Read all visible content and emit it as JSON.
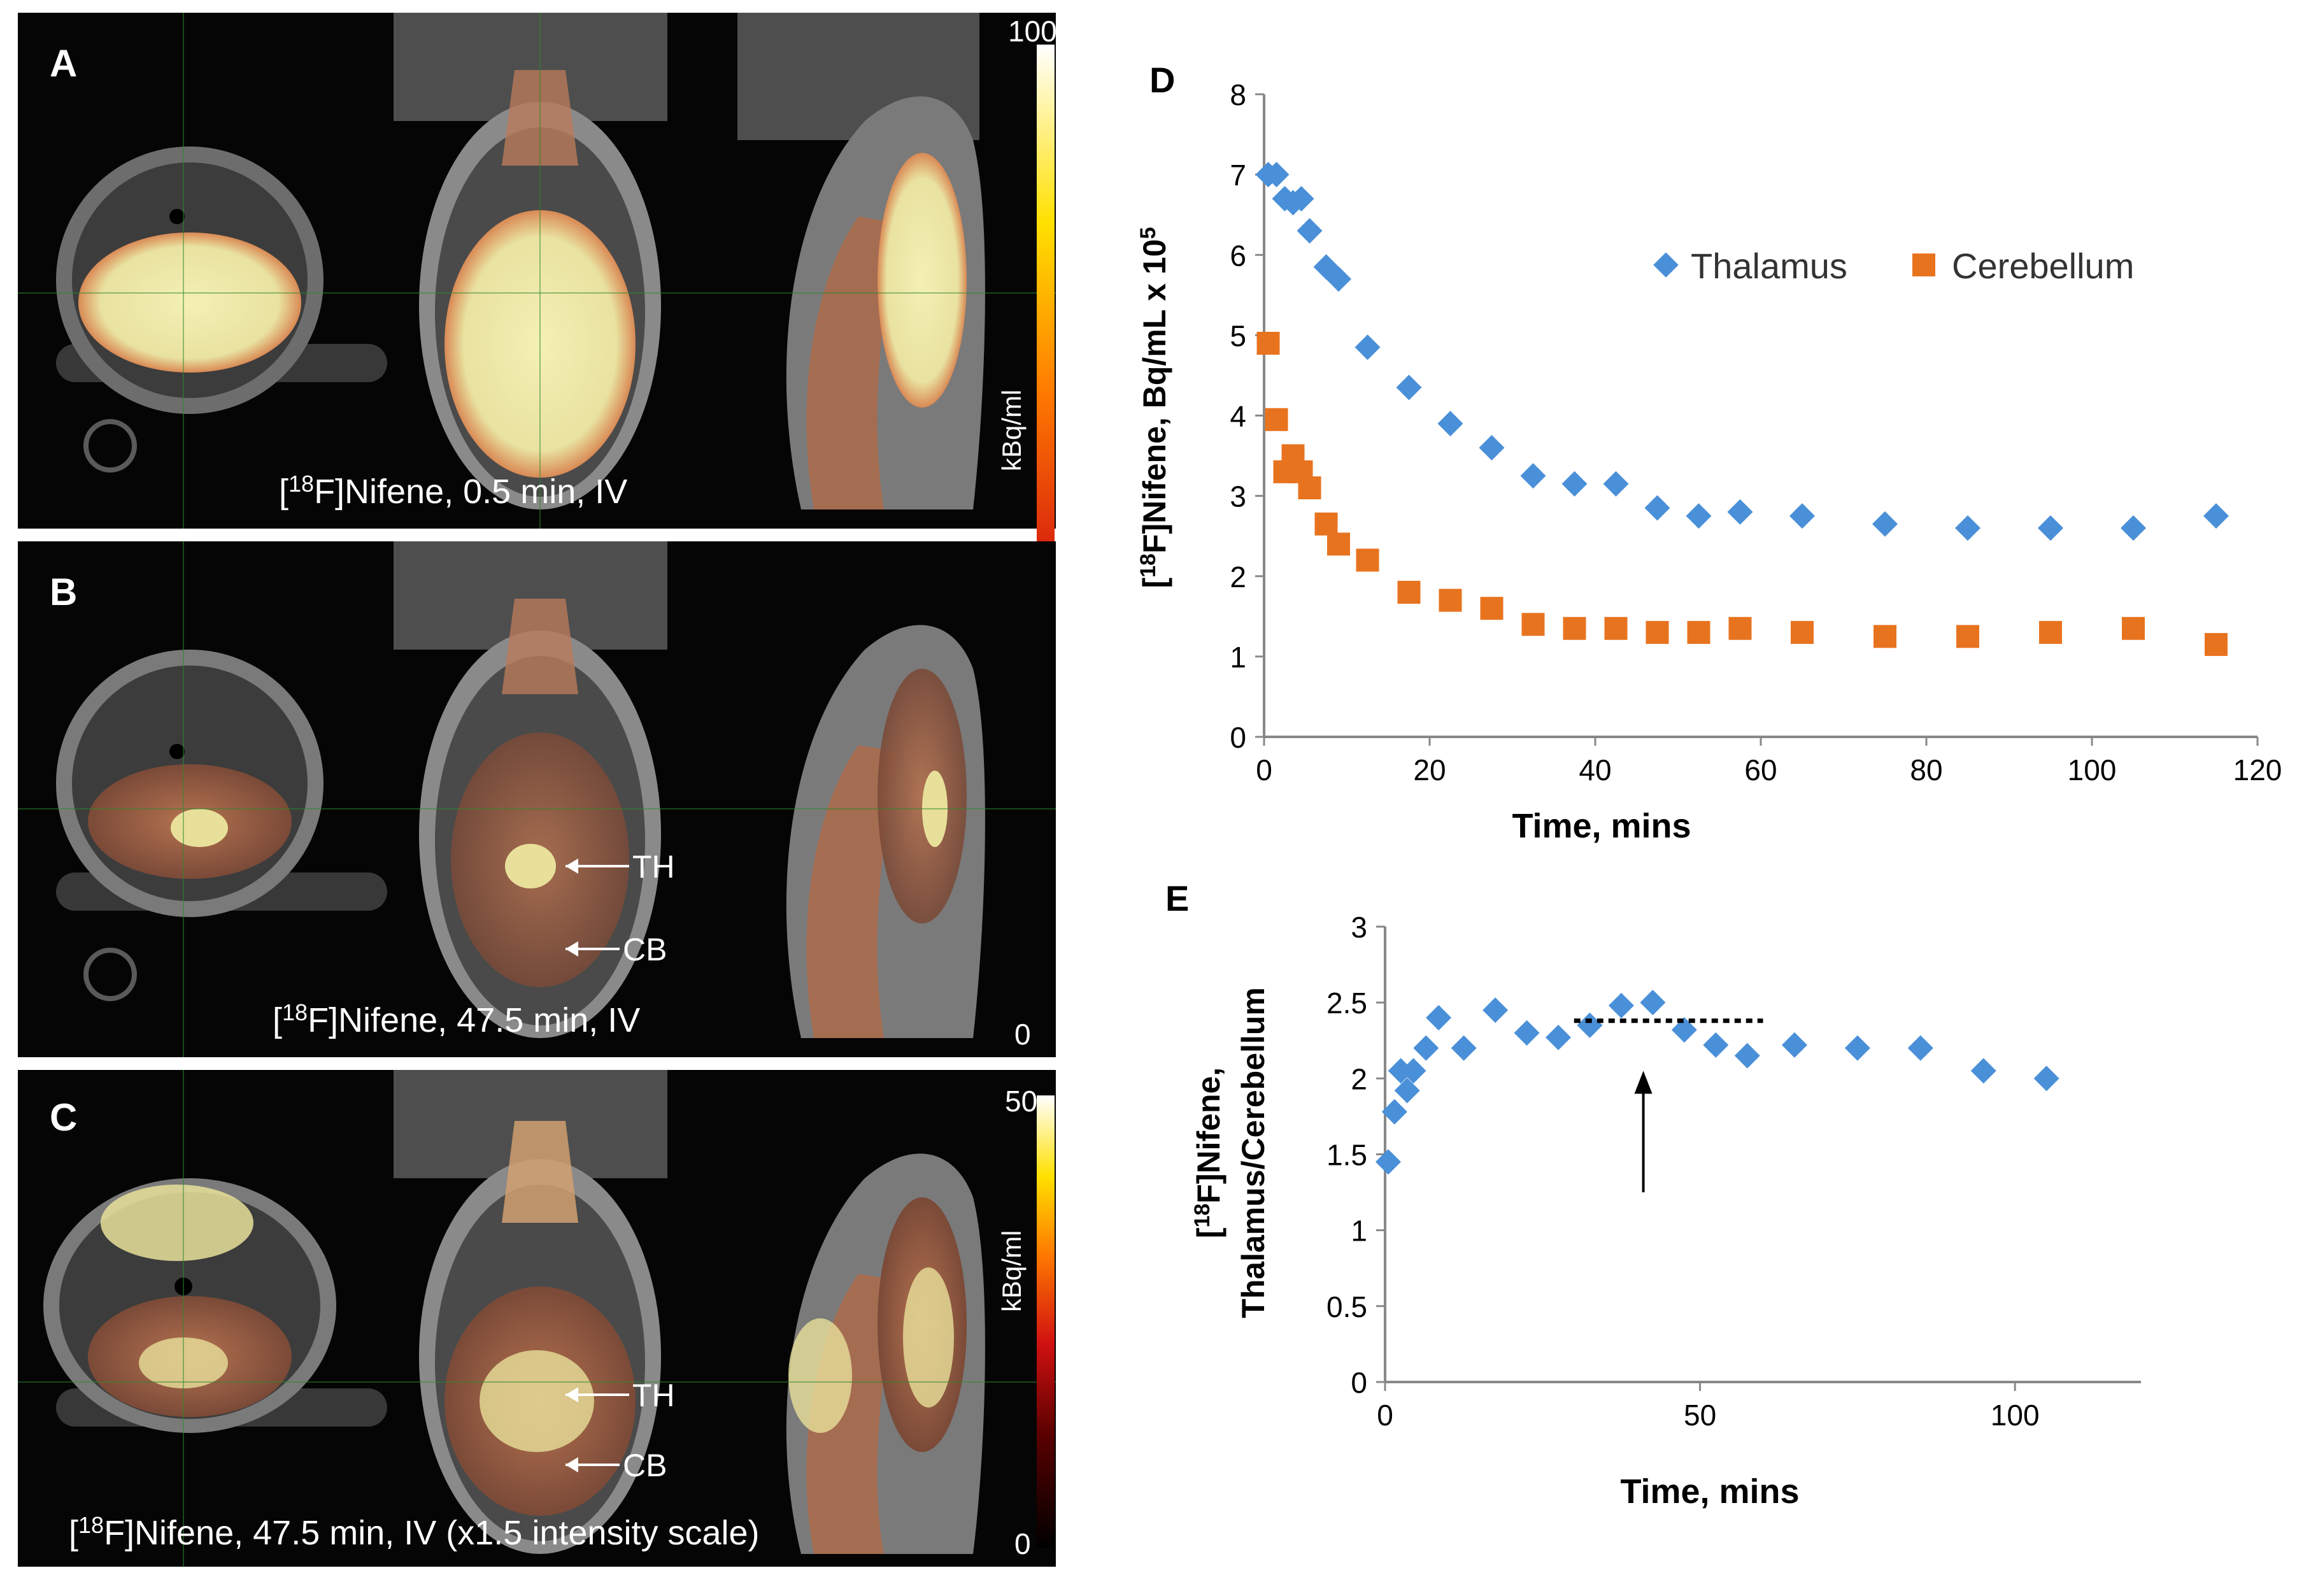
{
  "panels": [
    {
      "letter": "A",
      "caption_pre": "[",
      "caption_sup": "18",
      "caption_post": "F]Nifene, 0.5 min,  IV",
      "scale_max": "100",
      "scale_min": "",
      "scale_unit": "kBq/ml",
      "brain_uptake": 0.95,
      "annotations": []
    },
    {
      "letter": "B",
      "caption_pre": "[",
      "caption_sup": "18",
      "caption_post": "F]Nifene, 47.5 min,  IV",
      "scale_max": "",
      "scale_min": "0",
      "scale_unit": "",
      "brain_uptake": 0.45,
      "annotations": [
        "TH",
        "CB"
      ]
    },
    {
      "letter": "C",
      "caption_pre": "[",
      "caption_sup": "18",
      "caption_post": "F]Nifene, 47.5 min,  IV (x1.5 intensity scale)",
      "scale_max": "50",
      "scale_min": "0",
      "scale_unit": "kBq/ml",
      "brain_uptake": 0.65,
      "annotations": [
        "TH",
        "CB"
      ]
    }
  ],
  "chart_data": [
    {
      "type": "scatter",
      "panel": "D",
      "title": "",
      "xlabel": "Time, mins",
      "ylabel_pre": "[",
      "ylabel_sup": "18",
      "ylabel_post": "F]Nifene, Bq/mL x 10",
      "ylabel_exp": "5",
      "xlim": [
        0,
        120
      ],
      "ylim": [
        0,
        8
      ],
      "xticks": [
        0,
        20,
        40,
        60,
        80,
        100,
        120
      ],
      "yticks": [
        0,
        1,
        2,
        3,
        4,
        5,
        6,
        7,
        8
      ],
      "legend_position": "top-right",
      "series": [
        {
          "name": "Thalamus",
          "marker": "diamond",
          "color": "#4a90d9",
          "x": [
            0.5,
            1.5,
            2.5,
            3.5,
            4.5,
            5.5,
            7.5,
            9,
            12.5,
            17.5,
            22.5,
            27.5,
            32.5,
            37.5,
            42.5,
            47.5,
            52.5,
            57.5,
            65,
            75,
            85,
            95,
            105,
            115
          ],
          "y": [
            7.0,
            7.0,
            6.7,
            6.65,
            6.7,
            6.3,
            5.85,
            5.7,
            4.85,
            4.35,
            3.9,
            3.6,
            3.25,
            3.15,
            3.15,
            2.85,
            2.75,
            2.8,
            2.75,
            2.65,
            2.6,
            2.6,
            2.6,
            2.75
          ]
        },
        {
          "name": "Cerebellum",
          "marker": "square",
          "color": "#e8731f",
          "x": [
            0.5,
            1.5,
            2.5,
            3.5,
            4.5,
            5.5,
            7.5,
            9,
            12.5,
            17.5,
            22.5,
            27.5,
            32.5,
            37.5,
            42.5,
            47.5,
            52.5,
            57.5,
            65,
            75,
            85,
            95,
            105,
            115
          ],
          "y": [
            4.9,
            3.95,
            3.3,
            3.5,
            3.3,
            3.1,
            2.65,
            2.4,
            2.2,
            1.8,
            1.7,
            1.6,
            1.4,
            1.35,
            1.35,
            1.3,
            1.3,
            1.35,
            1.3,
            1.25,
            1.25,
            1.3,
            1.35,
            1.15
          ]
        }
      ]
    },
    {
      "type": "scatter",
      "panel": "E",
      "title": "",
      "xlabel": "Time, mins",
      "ylabel_line1_pre": "[",
      "ylabel_line1_sup": "18",
      "ylabel_line1_post": "F]Nifene,",
      "ylabel_line2": "Thalamus/Cerebellum",
      "xlim": [
        0,
        120
      ],
      "ylim": [
        0,
        3
      ],
      "xticks": [
        0,
        50,
        100
      ],
      "yticks": [
        0,
        0.5,
        1,
        1.5,
        2,
        2.5,
        3
      ],
      "series": [
        {
          "name": "",
          "marker": "diamond",
          "color": "#4a90d9",
          "x": [
            0.5,
            1.5,
            2.5,
            3.5,
            4.5,
            6.5,
            8.5,
            12.5,
            17.5,
            22.5,
            27.5,
            32.5,
            37.5,
            42.5,
            47.5,
            52.5,
            57.5,
            65,
            75,
            85,
            95,
            105
          ],
          "y": [
            1.45,
            1.78,
            2.05,
            1.92,
            2.05,
            2.2,
            2.4,
            2.2,
            2.45,
            2.3,
            2.27,
            2.35,
            2.48,
            2.5,
            2.32,
            2.22,
            2.15,
            2.22,
            2.2,
            2.2,
            2.05,
            2.0
          ]
        }
      ],
      "plateau_line": {
        "x": [
          30,
          60
        ],
        "y": 2.38
      },
      "arrow": {
        "x": 41,
        "y_from": 1.25,
        "y_to": 2.05
      }
    }
  ]
}
